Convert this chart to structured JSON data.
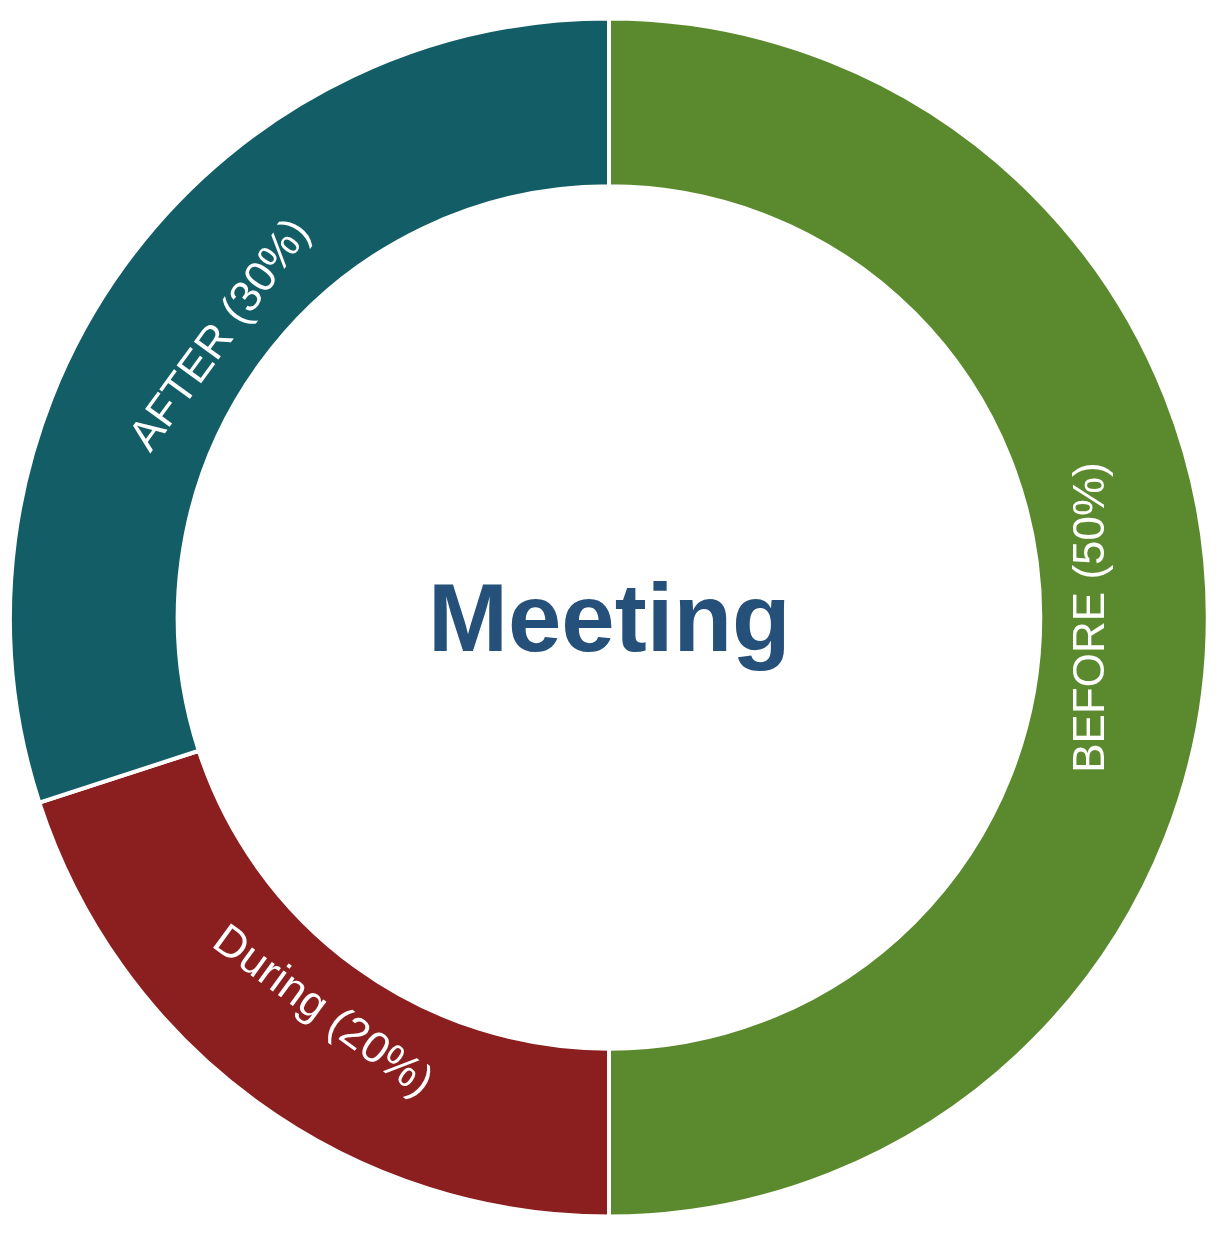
{
  "chart_data": {
    "type": "donut",
    "title": "Meeting",
    "categories": [
      "BEFORE (50%)",
      "During (20%)",
      "AFTER (30%)"
    ],
    "values": [
      50,
      20,
      30
    ],
    "colors": [
      "#5b8a2e",
      "#8b1e1f",
      "#135e66"
    ],
    "legend": false
  }
}
